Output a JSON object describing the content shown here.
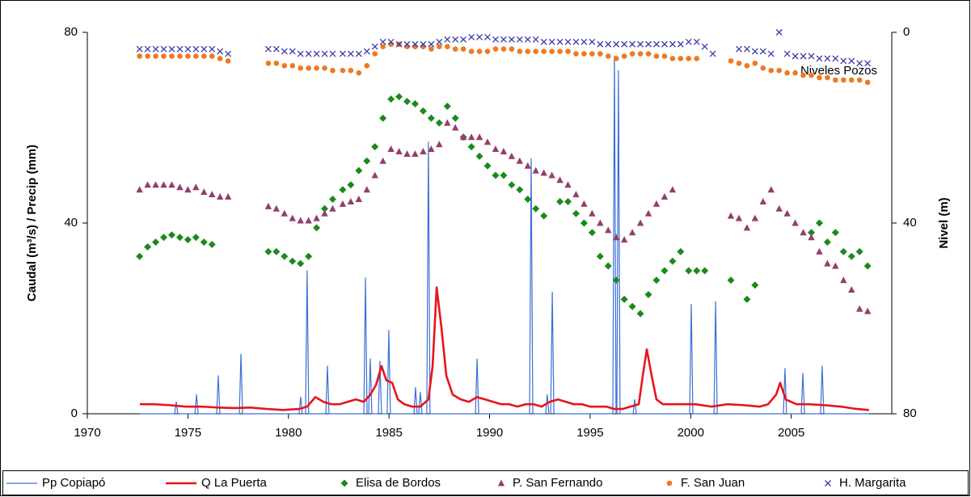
{
  "chart_data": {
    "type": "combo",
    "y_label": "Caudal (m³/s) / Precip (mm)",
    "y2_label": "Nivel (m)",
    "annotation": "Niveles Pozos",
    "xlim": [
      1970,
      2010
    ],
    "xticks": [
      1970,
      1975,
      1980,
      1985,
      1990,
      1995,
      2000,
      2005
    ],
    "ylim": [
      0,
      80
    ],
    "yticks": [
      0,
      40,
      80
    ],
    "y2lim": [
      80,
      0
    ],
    "y2ticks": [
      0,
      40,
      80
    ],
    "legend": "bottom",
    "series": [
      {
        "name": "Pp Copiapó",
        "type": "line",
        "color": "#3a6fd8",
        "width": 1.2,
        "x": [
          1972.61,
          1974.34,
          1974.42,
          1974.5,
          1975.35,
          1975.43,
          1975.51,
          1976.43,
          1976.51,
          1976.59,
          1977.56,
          1977.64,
          1977.72,
          1980.53,
          1980.61,
          1980.69,
          1980.85,
          1980.93,
          1981.01,
          1981.86,
          1981.94,
          1982.02,
          1983.75,
          1983.83,
          1983.91,
          1983.99,
          1984.07,
          1984.15,
          1984.47,
          1984.55,
          1984.63,
          1984.91,
          1984.99,
          1985.07,
          1986.24,
          1986.32,
          1986.4,
          1986.48,
          1986.56,
          1986.64,
          1986.88,
          1986.96,
          1987.04,
          1989.3,
          1989.38,
          1989.46,
          1991.99,
          1992.07,
          1992.15,
          1992.79,
          1992.87,
          1992.95,
          1993.04,
          1993.12,
          1993.2,
          1996.13,
          1996.21,
          1996.29,
          1996.33,
          1996.41,
          1996.49,
          1997.14,
          1997.22,
          1997.3,
          1999.95,
          2000.03,
          2000.11,
          2001.16,
          2001.24,
          2001.32,
          2004.61,
          2004.69,
          2004.77,
          2005.5,
          2005.58,
          2005.66,
          2006.46,
          2006.54,
          2006.62,
          2008.87
        ],
        "values": [
          0,
          0,
          2.5,
          0,
          0,
          4,
          0,
          0,
          8,
          0,
          0,
          12.5,
          0,
          0,
          3.5,
          0,
          0,
          30,
          0,
          0,
          10,
          0,
          0,
          28.5,
          0,
          0,
          11.5,
          0,
          0,
          11,
          0,
          0,
          17.5,
          0,
          0,
          5.5,
          0,
          0,
          4.5,
          0,
          0,
          57,
          0,
          0,
          11.5,
          0,
          0,
          53.5,
          0,
          0,
          4,
          0,
          0,
          25.5,
          0,
          0,
          75,
          0,
          0,
          72,
          0,
          0,
          3,
          0,
          0,
          23,
          0,
          0,
          23.5,
          0,
          0,
          9.5,
          0,
          0,
          8.5,
          0,
          0,
          10,
          0,
          0
        ]
      },
      {
        "name": "Q La Puerta",
        "type": "line",
        "color": "#e8141b",
        "width": 2.6,
        "x": [
          1972.61,
          1973.3,
          1974.1,
          1974.9,
          1975.71,
          1976.51,
          1977.32,
          1978.12,
          1978.92,
          1979.73,
          1980.53,
          1980.93,
          1981.34,
          1981.74,
          1982.14,
          1982.54,
          1982.94,
          1983.35,
          1983.75,
          1984.07,
          1984.35,
          1984.63,
          1984.87,
          1985.16,
          1985.44,
          1985.76,
          1986.16,
          1986.56,
          1986.96,
          1987.17,
          1987.37,
          1987.61,
          1987.85,
          1988.17,
          1988.57,
          1988.97,
          1989.38,
          1989.78,
          1990.18,
          1990.58,
          1990.98,
          1991.39,
          1991.79,
          1992.19,
          1992.59,
          1992.99,
          1993.4,
          1993.8,
          1994.2,
          1994.6,
          1995.0,
          1995.41,
          1995.81,
          1996.21,
          1996.61,
          1997.01,
          1997.42,
          1997.62,
          1997.82,
          1998.06,
          1998.3,
          1998.62,
          1999.43,
          2000.23,
          2001.03,
          2001.84,
          2002.64,
          2003.45,
          2003.85,
          2004.25,
          2004.45,
          2004.73,
          2005.26,
          2005.86,
          2006.66,
          2007.47,
          2008.27,
          2008.87
        ],
        "values": [
          2,
          2,
          1.8,
          1.5,
          1.5,
          1.3,
          1.2,
          1.3,
          1,
          0.8,
          1,
          1.5,
          3.5,
          2.5,
          2,
          2,
          2.5,
          3,
          2.5,
          4,
          6,
          10,
          7,
          6.5,
          3,
          2,
          1.5,
          1.5,
          3,
          10,
          26.5,
          18,
          8,
          4,
          3,
          2.5,
          3.5,
          3,
          2.5,
          2,
          2,
          1.5,
          2,
          2,
          1.5,
          2.5,
          3,
          2.5,
          2,
          2,
          1.5,
          1.5,
          1.5,
          1,
          1,
          1.5,
          2,
          8,
          13.5,
          8,
          3,
          2,
          2,
          2,
          1.5,
          2,
          1.8,
          1.5,
          2,
          4,
          6.5,
          3,
          2,
          2,
          1.8,
          1.5,
          1,
          0.8
        ]
      },
      {
        "name": "Elisa de Bordos",
        "type": "scatter",
        "axis": "y2",
        "marker": "diamond",
        "color": "#1a8a1a",
        "x": [
          1972.6,
          1973.0,
          1973.4,
          1973.8,
          1974.2,
          1974.6,
          1975.0,
          1975.4,
          1975.8,
          1976.2,
          1979.0,
          1979.4,
          1979.8,
          1980.2,
          1980.6,
          1981.0,
          1981.4,
          1981.8,
          1982.2,
          1982.7,
          1983.1,
          1983.5,
          1983.9,
          1984.3,
          1984.7,
          1985.1,
          1985.5,
          1985.9,
          1986.3,
          1986.7,
          1987.1,
          1987.5,
          1987.9,
          1988.3,
          1988.7,
          1989.1,
          1989.5,
          1989.9,
          1990.3,
          1990.7,
          1991.1,
          1991.5,
          1991.9,
          1992.3,
          1992.7,
          1993.5,
          1993.9,
          1994.3,
          1994.7,
          1995.1,
          1995.5,
          1995.9,
          1996.3,
          1996.7,
          1997.1,
          1997.5,
          1997.9,
          1998.3,
          1998.7,
          1999.1,
          1999.5,
          1999.9,
          2000.3,
          2000.7,
          2002.0,
          2002.8,
          2003.2,
          2006.0,
          2006.4,
          2006.8,
          2007.2,
          2007.6,
          2008.0,
          2008.4,
          2008.8
        ],
        "values": [
          47,
          45,
          44,
          43,
          42.5,
          43,
          43.5,
          43,
          44,
          44.5,
          46,
          46,
          47,
          48,
          48.5,
          47,
          41,
          37,
          35,
          33,
          32,
          29,
          27,
          24,
          18,
          14,
          13.5,
          14.5,
          15,
          16.5,
          18,
          19,
          15.5,
          18,
          22,
          24,
          26,
          28,
          30,
          30,
          32,
          33,
          35,
          37,
          38.5,
          35.5,
          35.5,
          38,
          40,
          42,
          47,
          49,
          52,
          56,
          57.5,
          59,
          55,
          52,
          50,
          48,
          46,
          50,
          50,
          50,
          52,
          56,
          53,
          42,
          40,
          44,
          42,
          46,
          47,
          46,
          49
        ]
      },
      {
        "name": "P. San Fernando",
        "type": "scatter",
        "axis": "y2",
        "marker": "triangle",
        "color": "#943e6c",
        "x": [
          1972.6,
          1973.0,
          1973.4,
          1973.8,
          1974.2,
          1974.6,
          1975.0,
          1975.4,
          1975.8,
          1976.2,
          1976.6,
          1977.0,
          1979.0,
          1979.4,
          1979.8,
          1980.2,
          1980.6,
          1981.0,
          1981.4,
          1981.8,
          1982.2,
          1982.7,
          1983.1,
          1983.5,
          1983.9,
          1984.3,
          1984.7,
          1985.1,
          1985.5,
          1985.9,
          1986.3,
          1986.7,
          1987.1,
          1987.5,
          1987.9,
          1988.3,
          1988.7,
          1989.1,
          1989.5,
          1989.9,
          1990.3,
          1990.7,
          1991.1,
          1991.5,
          1991.9,
          1992.3,
          1992.7,
          1993.1,
          1993.5,
          1993.9,
          1994.3,
          1994.7,
          1995.1,
          1995.5,
          1995.9,
          1996.3,
          1996.7,
          1997.1,
          1997.5,
          1997.9,
          1998.3,
          1998.7,
          1999.1,
          2002.0,
          2002.4,
          2002.8,
          2003.2,
          2003.6,
          2004.0,
          2004.4,
          2004.8,
          2005.2,
          2005.6,
          2006.0,
          2006.4,
          2006.8,
          2007.2,
          2007.6,
          2008.0,
          2008.4,
          2008.8
        ],
        "values": [
          33,
          32,
          32,
          32,
          32,
          32.5,
          33,
          32.5,
          33.5,
          34,
          34.5,
          34.5,
          36.5,
          37,
          38,
          39,
          39.5,
          39.5,
          39,
          38,
          37,
          36,
          35.5,
          35,
          33,
          30,
          27,
          24.5,
          25,
          25.5,
          25.5,
          25,
          24.5,
          23.5,
          19,
          20,
          22,
          22,
          22,
          23,
          24.5,
          25,
          26,
          27,
          28,
          29,
          29.5,
          30,
          31,
          32,
          34,
          36,
          38,
          40,
          41.5,
          43,
          43.5,
          42,
          40,
          38,
          36,
          34.5,
          33,
          38.5,
          39,
          41,
          39,
          35.5,
          33,
          37,
          38,
          40,
          42,
          43,
          46,
          48.5,
          49,
          52,
          54,
          58,
          58.5
        ]
      },
      {
        "name": "F. San Juan",
        "type": "scatter",
        "axis": "y2",
        "marker": "circle",
        "color": "#f07820",
        "x": [
          1972.6,
          1973.0,
          1973.4,
          1973.8,
          1974.2,
          1974.6,
          1975.0,
          1975.4,
          1975.8,
          1976.2,
          1976.6,
          1977.0,
          1979.0,
          1979.4,
          1979.8,
          1980.2,
          1980.6,
          1981.0,
          1981.4,
          1981.8,
          1982.2,
          1982.7,
          1983.1,
          1983.5,
          1983.9,
          1984.3,
          1984.7,
          1985.1,
          1985.5,
          1985.9,
          1986.3,
          1986.7,
          1987.1,
          1987.5,
          1987.9,
          1988.3,
          1988.7,
          1989.1,
          1989.5,
          1989.9,
          1990.3,
          1990.7,
          1991.1,
          1991.5,
          1991.9,
          1992.3,
          1992.7,
          1993.1,
          1993.5,
          1993.9,
          1994.3,
          1994.7,
          1995.1,
          1995.5,
          1995.9,
          1996.3,
          1996.7,
          1997.1,
          1997.5,
          1997.9,
          1998.3,
          1998.7,
          1999.1,
          1999.5,
          1999.9,
          2000.3,
          2002.0,
          2002.4,
          2002.8,
          2003.2,
          2003.6,
          2004.0,
          2004.4,
          2004.8,
          2005.2,
          2005.6,
          2006.0,
          2006.4,
          2006.8,
          2007.2,
          2007.6,
          2008.0,
          2008.4,
          2008.8
        ],
        "values": [
          5,
          5,
          5,
          5,
          5,
          5,
          5,
          5,
          5,
          5,
          5.5,
          6,
          6.5,
          6.5,
          7,
          7,
          7.5,
          7.5,
          7.5,
          7.5,
          8,
          8,
          8,
          8.5,
          7,
          4.5,
          3,
          2.5,
          2.5,
          3,
          3,
          3,
          3.5,
          3,
          3,
          3.5,
          3.5,
          4,
          4,
          4,
          3.5,
          3.5,
          3.5,
          4,
          4,
          4,
          4,
          4,
          4,
          4,
          4.5,
          4.5,
          4.5,
          4.5,
          5,
          5.5,
          5,
          4.5,
          4.5,
          4.5,
          5,
          5,
          5.5,
          5.5,
          5.5,
          5.5,
          6,
          6.5,
          7,
          6.5,
          7.5,
          8,
          8,
          8.5,
          8.5,
          9,
          9,
          9.5,
          9.5,
          10,
          10,
          10,
          10,
          10.5
        ]
      },
      {
        "name": "H. Margarita",
        "type": "scatter",
        "axis": "y2",
        "marker": "x",
        "color": "#3a3aa8",
        "x": [
          1972.6,
          1973.0,
          1973.4,
          1973.8,
          1974.2,
          1974.6,
          1975.0,
          1975.4,
          1975.8,
          1976.2,
          1976.6,
          1977.0,
          1979.0,
          1979.4,
          1979.8,
          1980.2,
          1980.6,
          1981.0,
          1981.4,
          1981.8,
          1982.2,
          1982.7,
          1983.1,
          1983.5,
          1983.9,
          1984.3,
          1984.7,
          1985.1,
          1985.5,
          1985.9,
          1986.3,
          1986.7,
          1987.1,
          1987.5,
          1987.9,
          1988.3,
          1988.7,
          1989.1,
          1989.5,
          1989.9,
          1990.3,
          1990.7,
          1991.1,
          1991.5,
          1991.9,
          1992.3,
          1992.7,
          1993.1,
          1993.5,
          1993.9,
          1994.3,
          1994.7,
          1995.1,
          1995.5,
          1995.9,
          1996.3,
          1996.7,
          1997.1,
          1997.5,
          1997.9,
          1998.3,
          1998.7,
          1999.1,
          1999.5,
          1999.9,
          2000.3,
          2000.7,
          2001.1,
          2002.4,
          2002.8,
          2003.2,
          2003.6,
          2004.0,
          2004.4,
          2004.8,
          2005.2,
          2005.6,
          2006.0,
          2006.4,
          2006.8,
          2007.2,
          2007.6,
          2008.0,
          2008.4,
          2008.8
        ],
        "values": [
          3.5,
          3.5,
          3.5,
          3.5,
          3.5,
          3.5,
          3.5,
          3.5,
          3.5,
          3.5,
          4,
          4.5,
          3.5,
          3.5,
          4,
          4,
          4.5,
          4.5,
          4.5,
          4.5,
          4.5,
          4.5,
          4.5,
          4.5,
          4,
          3,
          2,
          2,
          2.5,
          2.5,
          2.5,
          2.5,
          2.5,
          2,
          1.5,
          1.5,
          1.5,
          1,
          1,
          1,
          1.5,
          1.5,
          1.5,
          1.5,
          1.5,
          1.5,
          2,
          2,
          2,
          2,
          2,
          2,
          2,
          2.5,
          2.5,
          2.5,
          2.5,
          2.5,
          2.5,
          2.5,
          2.5,
          2.5,
          2.5,
          2.5,
          2,
          2,
          3,
          4.5,
          3.5,
          3.5,
          4,
          4,
          4.5,
          0,
          4.5,
          5,
          5,
          5,
          5.5,
          5.5,
          5.5,
          6,
          6,
          6.5,
          6.5
        ]
      }
    ]
  }
}
